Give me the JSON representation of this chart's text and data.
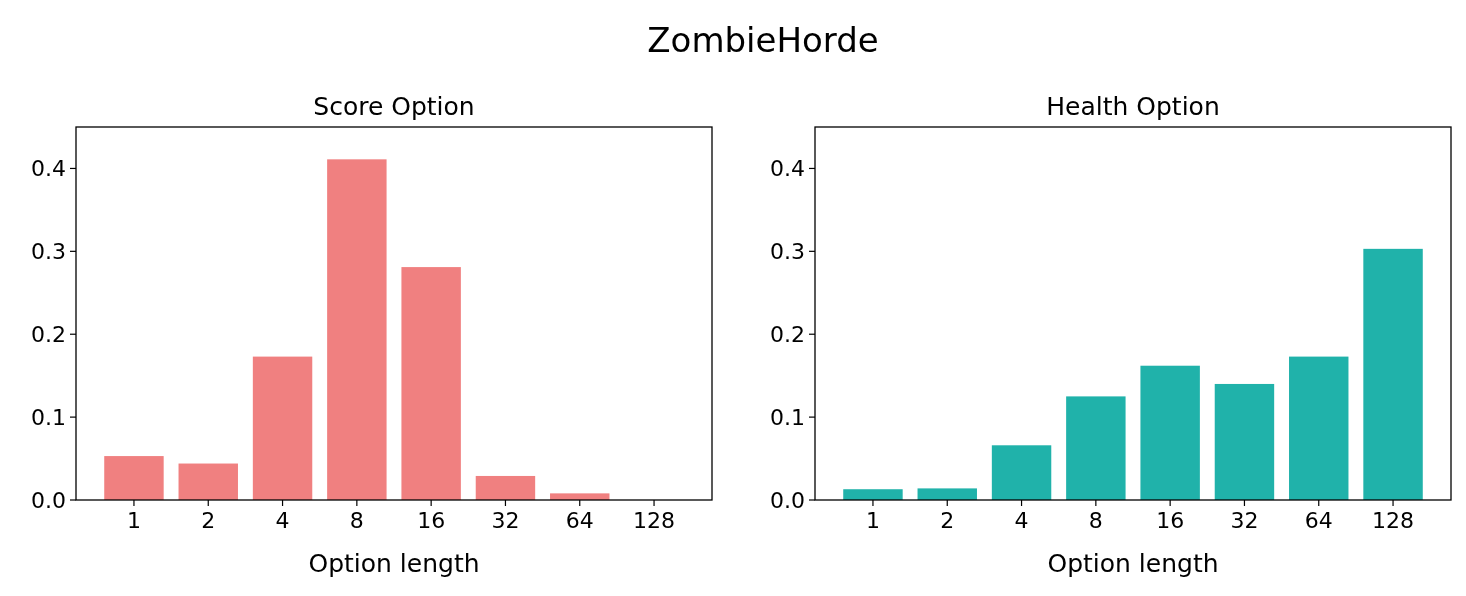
{
  "chart_data": [
    {
      "type": "other",
      "title": "ZombieHorde"
    },
    {
      "type": "bar",
      "title": "Score Option",
      "xlabel": "Option length",
      "categories": [
        "1",
        "2",
        "4",
        "8",
        "16",
        "32",
        "64",
        "128"
      ],
      "values": [
        0.053,
        0.044,
        0.173,
        0.411,
        0.281,
        0.029,
        0.008,
        0
      ],
      "color": "#f08080",
      "ylim": [
        0,
        0.45
      ],
      "yticks": [
        {
          "value": 0,
          "label": "0.0"
        },
        0.1,
        0.2,
        0.3,
        0.4
      ],
      "grid": false
    },
    {
      "type": "bar",
      "title": "Health Option",
      "xlabel": "Option length",
      "categories": [
        "1",
        "2",
        "4",
        "8",
        "16",
        "32",
        "64",
        "128"
      ],
      "values": [
        0.013,
        0.014,
        0.066,
        0.125,
        0.162,
        0.14,
        0.173,
        0.303
      ],
      "color": "#20b2aa",
      "ylim": [
        0,
        0.45
      ],
      "yticks": [
        {
          "value": 0,
          "label": "0.0"
        },
        0.1,
        0.2,
        0.3,
        0.4
      ],
      "grid": false
    }
  ]
}
